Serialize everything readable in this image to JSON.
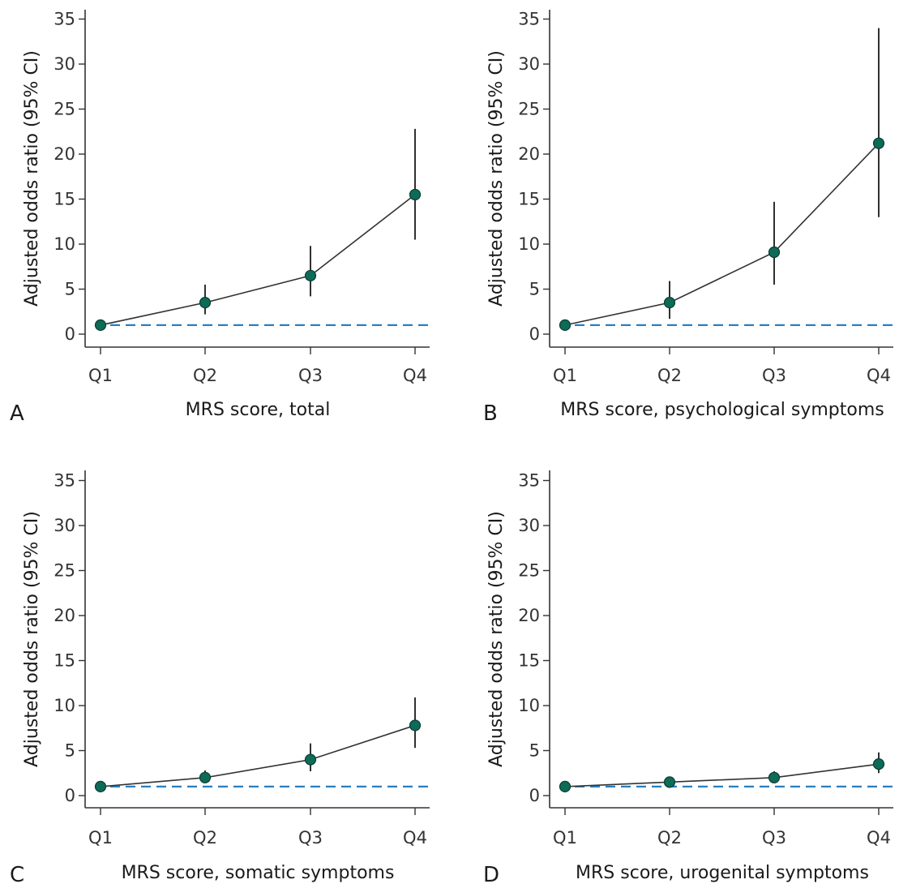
{
  "chart_data": [
    {
      "type": "line",
      "panel_label": "A",
      "xlabel": "MRS score, total",
      "ylabel": "Adjusted odds ratio (95% CI)",
      "categories": [
        "Q1",
        "Q2",
        "Q3",
        "Q4"
      ],
      "values": [
        1.0,
        3.5,
        6.5,
        15.5
      ],
      "ci_lower": [
        1.0,
        2.2,
        4.2,
        10.5
      ],
      "ci_upper": [
        1.0,
        5.5,
        9.8,
        22.8
      ],
      "reference_line": 1,
      "ylim": [
        0,
        36
      ],
      "yticks": [
        0,
        5,
        10,
        15,
        20,
        25,
        30,
        35
      ]
    },
    {
      "type": "line",
      "panel_label": "B",
      "xlabel": "MRS score, psychological symptoms",
      "ylabel": "Adjusted odds ratio (95% CI)",
      "categories": [
        "Q1",
        "Q2",
        "Q3",
        "Q4"
      ],
      "values": [
        1.0,
        3.5,
        9.1,
        21.2
      ],
      "ci_lower": [
        1.0,
        1.7,
        5.5,
        13.0
      ],
      "ci_upper": [
        1.0,
        5.9,
        14.7,
        34.0
      ],
      "reference_line": 1,
      "ylim": [
        0,
        36
      ],
      "yticks": [
        0,
        5,
        10,
        15,
        20,
        25,
        30,
        35
      ]
    },
    {
      "type": "line",
      "panel_label": "C",
      "xlabel": "MRS score, somatic symptoms",
      "ylabel": "Adjusted odds ratio (95% CI)",
      "categories": [
        "Q1",
        "Q2",
        "Q3",
        "Q4"
      ],
      "values": [
        1.0,
        2.0,
        4.0,
        7.8
      ],
      "ci_lower": [
        1.0,
        1.4,
        2.7,
        5.3
      ],
      "ci_upper": [
        1.0,
        2.8,
        5.8,
        10.9
      ],
      "reference_line": 1,
      "ylim": [
        0,
        36
      ],
      "yticks": [
        0,
        5,
        10,
        15,
        20,
        25,
        30,
        35
      ]
    },
    {
      "type": "line",
      "panel_label": "D",
      "xlabel": "MRS score, urogenital symptoms",
      "ylabel": "Adjusted odds ratio (95% CI)",
      "categories": [
        "Q1",
        "Q2",
        "Q3",
        "Q4"
      ],
      "values": [
        1.0,
        1.5,
        2.0,
        3.5
      ],
      "ci_lower": [
        1.0,
        1.1,
        1.4,
        2.5
      ],
      "ci_upper": [
        1.0,
        1.9,
        2.7,
        4.8
      ],
      "reference_line": 1,
      "ylim": [
        0,
        36
      ],
      "yticks": [
        0,
        5,
        10,
        15,
        20,
        25,
        30,
        35
      ]
    }
  ],
  "colors": {
    "marker_fill": "#0d6b57",
    "marker_stroke": "#0a3d33",
    "line": "#333333",
    "ci": "#1a1a1a",
    "reference_line": "#2a7fbf",
    "axis": "#333333"
  }
}
